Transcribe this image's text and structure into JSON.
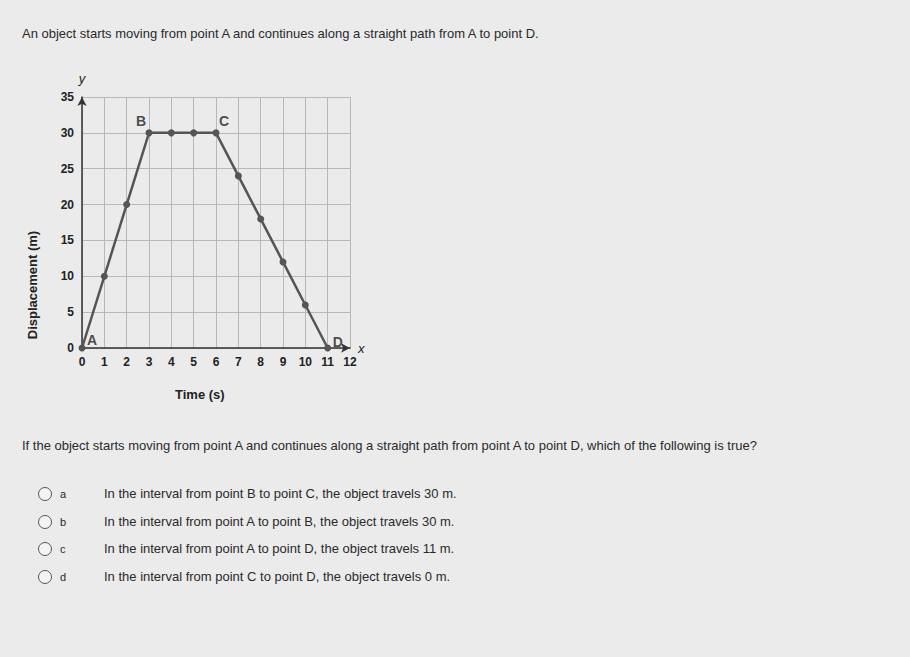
{
  "intro": "An object starts moving from point A and continues along a straight path from A to point D.",
  "chart_data": {
    "type": "line",
    "x": [
      0,
      1,
      2,
      3,
      4,
      5,
      6,
      7,
      8,
      9,
      10,
      11
    ],
    "values": [
      0,
      10,
      20,
      30,
      30,
      30,
      30,
      24,
      18,
      12,
      6,
      0
    ],
    "xlim": [
      0,
      12
    ],
    "xticks": [
      0,
      1,
      2,
      3,
      4,
      5,
      6,
      7,
      8,
      9,
      10,
      11,
      12
    ],
    "ylim": [
      0,
      35
    ],
    "yticks": [
      0,
      5,
      10,
      15,
      20,
      25,
      30,
      35
    ],
    "x_label": "Time (s)",
    "y_label": "Displacement (m)",
    "axis_names": {
      "x": "x",
      "y": "y"
    },
    "annotations": [
      {
        "text": "A",
        "x": 0,
        "y": 0
      },
      {
        "text": "B",
        "x": 3,
        "y": 30
      },
      {
        "text": "C",
        "x": 6,
        "y": 30
      },
      {
        "text": "D",
        "x": 11,
        "y": 0
      }
    ],
    "color": "#555555",
    "marker": "circle",
    "grid": true
  },
  "question": "If the object starts moving from point A and continues along a straight path from point A to point D, which of the following is true?",
  "options": [
    {
      "letter": "a",
      "text": "In the interval from point B to point C, the object travels 30 m."
    },
    {
      "letter": "b",
      "text": "In the interval from point A to point B, the object travels 30 m."
    },
    {
      "letter": "c",
      "text": "In the interval from point A to point D, the object travels 11 m."
    },
    {
      "letter": "d",
      "text": "In the interval from point C to point D, the object travels 0 m."
    }
  ]
}
